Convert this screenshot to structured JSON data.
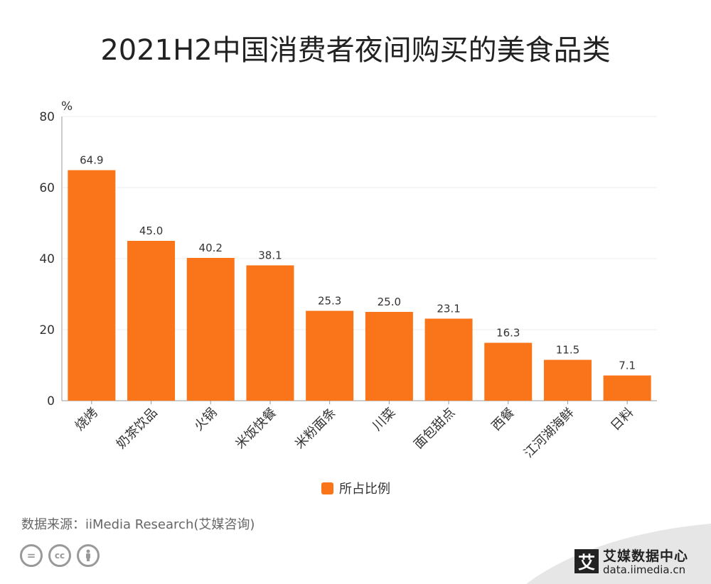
{
  "title": "2021H2中国消费者夜间购买的美食品类",
  "chart_data": {
    "type": "bar",
    "title": "2021H2中国消费者夜间购买的美食品类",
    "ylabel": "%",
    "xlabel": "",
    "ylim": [
      0,
      80
    ],
    "yticks": [
      0,
      20,
      40,
      60,
      80
    ],
    "grid": true,
    "categories": [
      "烧烤",
      "奶茶饮品",
      "火锅",
      "米饭快餐",
      "米粉面条",
      "川菜",
      "面包甜点",
      "西餐",
      "江河湖海鲜",
      "日料"
    ],
    "series": [
      {
        "name": "所占比例",
        "values": [
          64.9,
          45.0,
          40.2,
          38.1,
          25.3,
          25.0,
          23.1,
          16.3,
          11.5,
          7.1
        ]
      }
    ],
    "value_labels": [
      "64.9",
      "45.0",
      "40.2",
      "38.1",
      "25.3",
      "25.0",
      "23.1",
      "16.3",
      "11.5",
      "7.1"
    ],
    "legend_position": "bottom-center",
    "bar_color": "#fa7419"
  },
  "legend": {
    "label": "所占比例"
  },
  "source": "数据来源：iiMedia Research(艾媒咨询)",
  "brand": {
    "logo_char": "艾",
    "name": "艾媒数据中心",
    "url": "data.iimedia.cn"
  },
  "colors": {
    "bar": "#fa7419",
    "axis": "#999999",
    "grid": "#eeeeee",
    "text": "#333333"
  },
  "icons": [
    "cc-equals-icon",
    "cc-icon",
    "cc-person-icon"
  ]
}
